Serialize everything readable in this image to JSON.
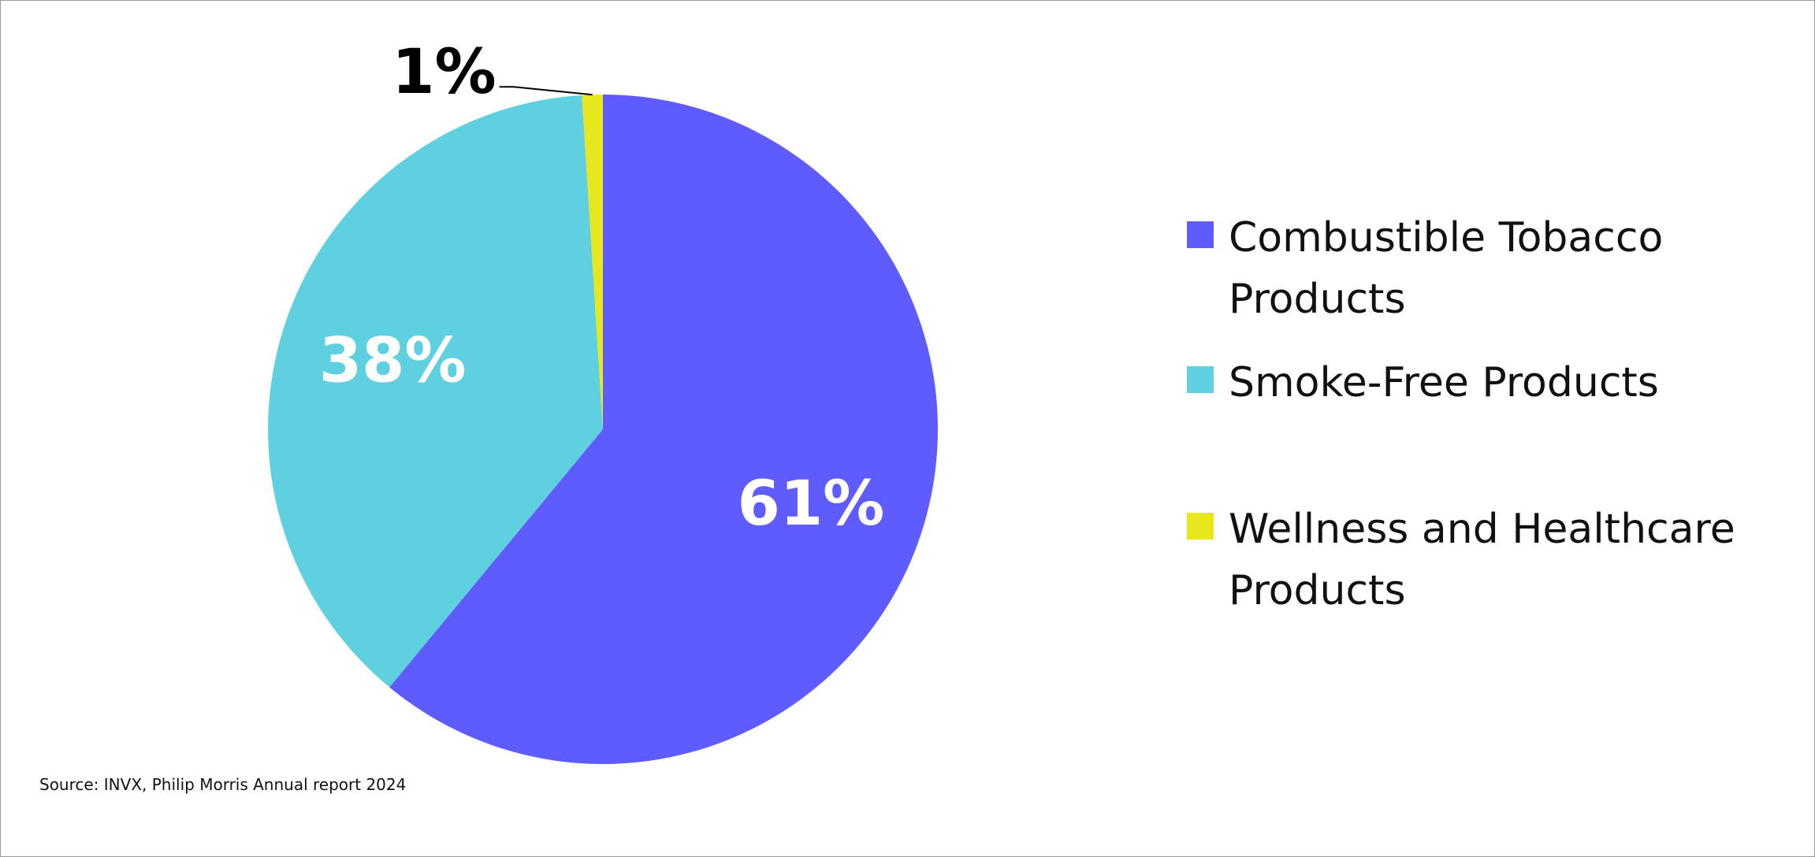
{
  "chart_data": {
    "type": "pie",
    "slices": [
      {
        "name": "Combustible Tobacco Products",
        "value": 61,
        "label": "61%",
        "color": "#5f5cff",
        "label_color": "#ffffff"
      },
      {
        "name": "Smoke-Free Products",
        "value": 38,
        "label": "38%",
        "color": "#5fd0e0",
        "label_color": "#ffffff"
      },
      {
        "name": "Wellness and Healthcare Products",
        "value": 1,
        "label": "1%",
        "color": "#e8e61e",
        "label_color": "#000000"
      }
    ],
    "legend": {
      "placement": "right",
      "items": [
        {
          "label": "Combustible Tobacco Products",
          "color": "#5f5cff"
        },
        {
          "label": "Smoke-Free Products",
          "color": "#5fd0e0"
        },
        {
          "label": "Wellness and Healthcare Products",
          "color": "#e8e61e"
        }
      ]
    }
  },
  "source": "Source: INVX, Philip Morris Annual report 2024"
}
